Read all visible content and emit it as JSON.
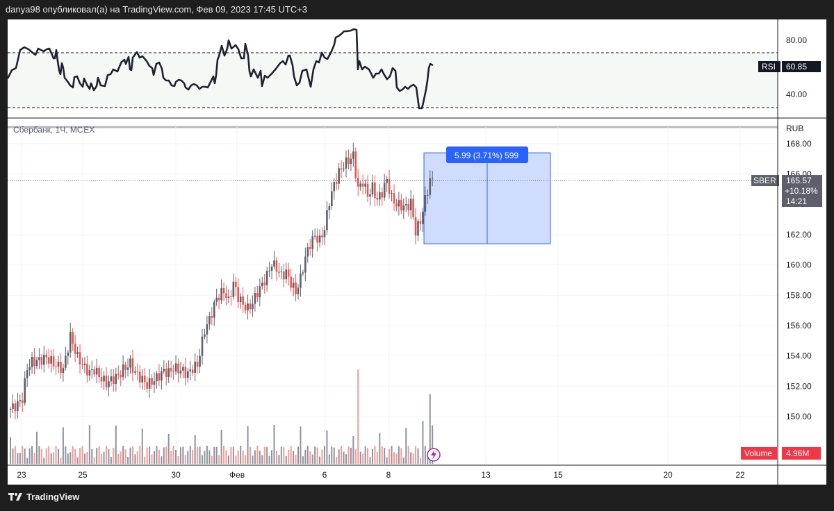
{
  "header": {
    "caption": "danya98 опубликовал(а) на TradingView.com, Фев 09, 2023 17:45 UTC+3"
  },
  "footer": {
    "brand": "TradingView"
  },
  "rsi_panel": {
    "label": "RSI",
    "value": "60.85",
    "ticks": [
      "80.00",
      "40.00"
    ]
  },
  "price_panel": {
    "symbol_title": "Сбербанк, 1Ч, MOEX",
    "currency": "RUB",
    "ticker": "SBER",
    "last_price": "165.57",
    "change_pct": "+10.18%",
    "countdown": "14:21",
    "ticks": [
      "168.00",
      "166.00",
      "162.00",
      "160.00",
      "158.00",
      "156.00",
      "154.00",
      "152.00",
      "150.00"
    ],
    "measure_label": "5.99 (3.71%) 599",
    "volume_label": "Volume",
    "volume_value": "4.96M"
  },
  "x_axis": {
    "labels": [
      "23",
      "25",
      "30",
      "Фев",
      "6",
      "8",
      "13",
      "15",
      "20",
      "22"
    ]
  },
  "colors": {
    "up": "#5d606b",
    "down": "#ef5350",
    "rsi": "#1e222d",
    "measure": "#2962ff",
    "volume_badge": "#f23645"
  },
  "chart_data": {
    "type": "candlestick",
    "title": "Сбербанк, 1Ч, MOEX",
    "currency": "RUB",
    "ylim": [
      149,
      169
    ],
    "price_trend": [
      [
        0,
        150.5
      ],
      [
        3,
        150.8
      ],
      [
        5,
        151.2
      ],
      [
        7,
        153.2
      ],
      [
        9,
        153.6
      ],
      [
        12,
        153.7
      ],
      [
        15,
        153.9
      ],
      [
        18,
        153.5
      ],
      [
        22,
        153.1
      ],
      [
        25,
        155.3
      ],
      [
        28,
        153.9
      ],
      [
        31,
        153.2
      ],
      [
        33,
        152.9
      ],
      [
        35,
        153.1
      ],
      [
        38,
        152.5
      ],
      [
        40,
        152.2
      ],
      [
        42,
        152.4
      ],
      [
        45,
        152.7
      ],
      [
        47,
        153.1
      ],
      [
        50,
        153.5
      ],
      [
        52,
        152.9
      ],
      [
        54,
        152.6
      ],
      [
        57,
        152.1
      ],
      [
        60,
        152.4
      ],
      [
        62,
        152.7
      ],
      [
        64,
        153.0
      ],
      [
        66,
        152.9
      ],
      [
        68,
        153.2
      ],
      [
        70,
        153.1
      ],
      [
        72,
        153.0
      ],
      [
        74,
        152.8
      ],
      [
        76,
        153.2
      ],
      [
        78,
        153.4
      ],
      [
        81,
        155.7
      ],
      [
        83,
        156.4
      ],
      [
        86,
        157.8
      ],
      [
        89,
        158.3
      ],
      [
        91,
        157.6
      ],
      [
        93,
        158.8
      ],
      [
        95,
        157.9
      ],
      [
        97,
        157.4
      ],
      [
        99,
        157.1
      ],
      [
        101,
        157.5
      ],
      [
        103,
        158.2
      ],
      [
        105,
        158.7
      ],
      [
        107,
        159.3
      ],
      [
        109,
        160.1
      ],
      [
        111,
        159.8
      ],
      [
        113,
        159.3
      ],
      [
        115,
        159.5
      ],
      [
        117,
        158.8
      ],
      [
        119,
        158.2
      ],
      [
        121,
        159.1
      ],
      [
        123,
        160.5
      ],
      [
        125,
        161.4
      ],
      [
        127,
        161.9
      ],
      [
        129,
        161.6
      ],
      [
        131,
        162.4
      ],
      [
        133,
        164.2
      ],
      [
        135,
        165.3
      ],
      [
        137,
        166.1
      ],
      [
        139,
        166.6
      ],
      [
        141,
        166.9
      ],
      [
        143,
        167.2
      ],
      [
        145,
        165.0
      ],
      [
        147,
        165.5
      ],
      [
        149,
        164.6
      ],
      [
        151,
        165.1
      ],
      [
        153,
        164.3
      ],
      [
        155,
        164.8
      ],
      [
        157,
        165.6
      ],
      [
        159,
        164.4
      ],
      [
        161,
        164.0
      ],
      [
        163,
        163.9
      ],
      [
        165,
        163.8
      ],
      [
        167,
        164.1
      ],
      [
        169,
        162.2
      ],
      [
        171,
        162.9
      ],
      [
        173,
        164.3
      ],
      [
        175,
        165.6
      ]
    ],
    "rsi": {
      "ticks": [
        80,
        40
      ],
      "last": 60.85,
      "dashed_levels": [
        70,
        30
      ]
    },
    "measure": {
      "from": 161.4,
      "to": 167.4,
      "change": 5.99,
      "pct": 3.71,
      "bars": 599
    },
    "last_price": 165.57,
    "x_tick_labels": [
      "23",
      "25",
      "30",
      "Фев",
      "6",
      "8",
      "13",
      "15",
      "20",
      "22"
    ]
  }
}
